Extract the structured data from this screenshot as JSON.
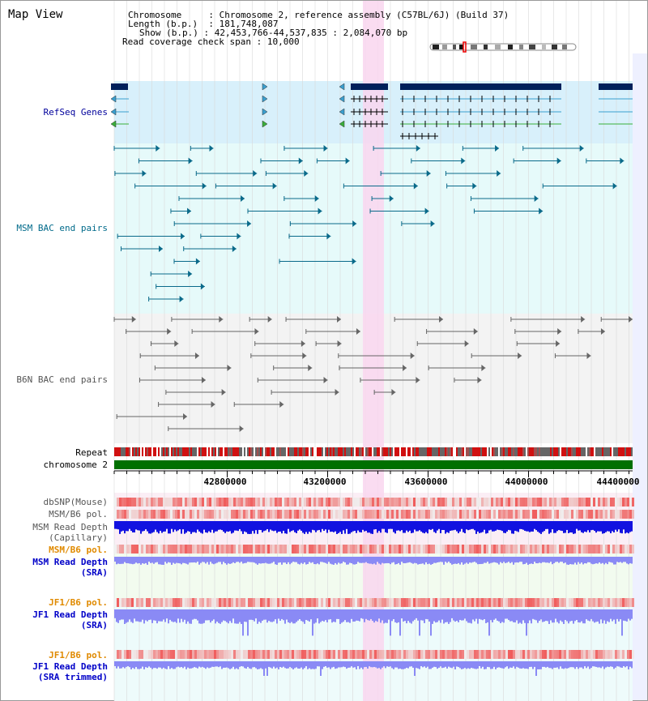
{
  "title": "Map View",
  "info": {
    "chromosome_key": "Chromosome",
    "chromosome_val": "Chromosome 2, reference assembly (C57BL/6J) (Build 37)",
    "length_key": "Length (b.p.)",
    "length_val": "181,748,087",
    "show_key": "Show (b.p.)",
    "show_val": "42,453,766-44,537,835 : 2,084,070 bp",
    "coverage_key": "Read coverage check span",
    "coverage_val": "10,000"
  },
  "tracks": {
    "refseq": "RefSeq Genes",
    "msm_bac": "MSM BAC end pairs",
    "b6n_bac": "B6N BAC end pairs",
    "repeat": "Repeat",
    "chromosome": "chromosome 2",
    "dbsnp": "dbSNP(Mouse)",
    "msm_pol": "MSM/B6 pol.",
    "msm_depth_cap_1": "MSM Read Depth",
    "msm_depth_cap_2": "(Capillary)",
    "msm_pol_sra": "MSM/B6 pol.",
    "msm_depth_sra_1": "MSM Read Depth",
    "msm_depth_sra_2": "(SRA)",
    "jf1_pol": "JF1/B6 pol.",
    "jf1_depth_1": "JF1 Read Depth",
    "jf1_depth_2": "(SRA)",
    "jf1_pol_trim": "JF1/B6 pol.",
    "jf1_trim_1": "JF1 Read Depth",
    "jf1_trim_2": "(SRA trimmed)"
  },
  "axis_ticks": [
    "42800000",
    "43200000",
    "43600000",
    "44000000",
    "44400000"
  ],
  "colors": {
    "refseq_bg": "#d8f0fb",
    "msm_bg": "#e6fafa",
    "b6n_bg": "#f3f3f3",
    "highlight": "#f9d6ee",
    "chromosome_bar": "#007000",
    "gene": "#00205b",
    "msm_pair": "#0a6a8a",
    "b6n_pair": "#666666",
    "depth_dark": "#1212e0",
    "depth_light": "#8a8af5"
  }
}
